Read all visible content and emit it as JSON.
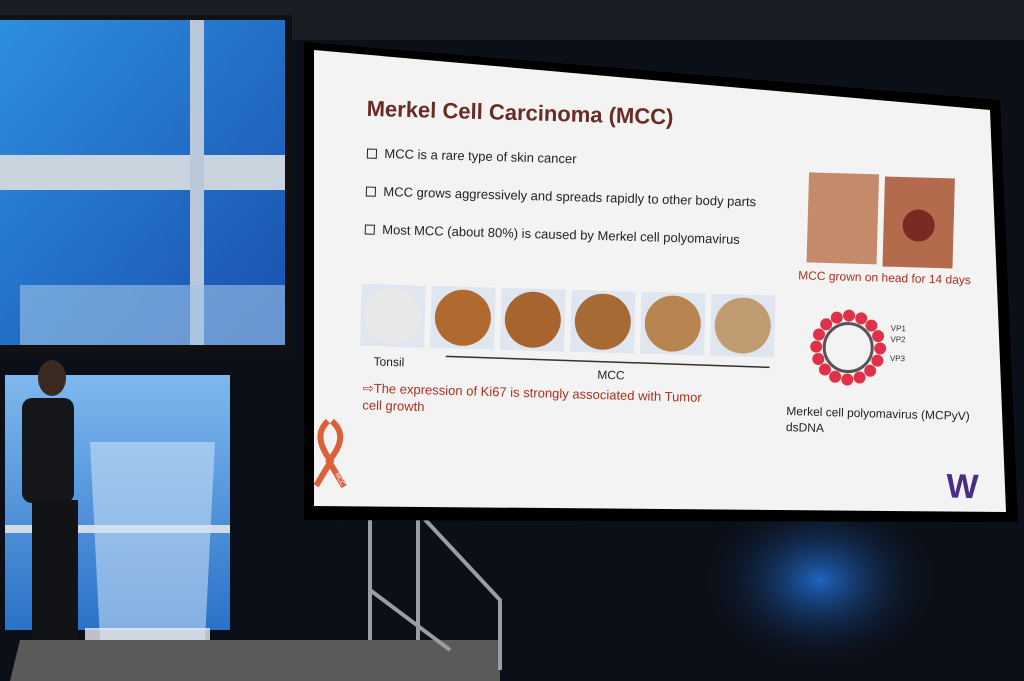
{
  "slide": {
    "title": "Merkel Cell Carcinoma (MCC)",
    "bullets": [
      "MCC is a rare type of skin cancer",
      "MCC grows aggressively and spreads rapidly to other body parts",
      "Most MCC (about 80%) is caused by Merkel cell polyomavirus"
    ],
    "photo_caption": "MCC grown on head  for 14 days",
    "virus_labels": [
      "VP1",
      "VP2",
      "VP3"
    ],
    "tonsil_label": "Tonsil",
    "mcc_label": "MCC",
    "conclusion": [
      "⇨The expression of Ki67 is strongly associated with Tumor",
      "cell growth"
    ],
    "virus_caption": [
      "Merkel cell polyomavirus (MCPyV)",
      "dsDNA"
    ],
    "ribbon_label": "MCC",
    "logo": "W"
  }
}
